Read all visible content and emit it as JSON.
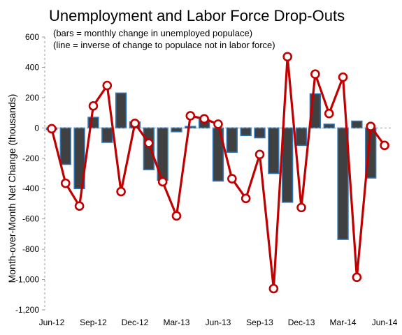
{
  "chart_data": {
    "type": "bar+line",
    "title": "Unemployment and Labor Force Drop-Outs",
    "subtitle_lines": [
      "(bars = monthly change in unemployed populace)",
      "(line = inverse of change to populace not in labor force)"
    ],
    "ylabel": "Month-over-Month Net Change (thousands)",
    "xlabel": "",
    "ylim": [
      -1200,
      600
    ],
    "yticks": [
      600,
      400,
      200,
      0,
      -200,
      -400,
      -600,
      -800,
      -1000,
      -1200
    ],
    "ytick_labels": [
      "600",
      "400",
      "200",
      "0",
      "-200",
      "-400",
      "-600",
      "-800",
      "-1,000",
      "-1,200"
    ],
    "x": [
      "Jun-12",
      "Jul-12",
      "Aug-12",
      "Sep-12",
      "Oct-12",
      "Nov-12",
      "Dec-12",
      "Jan-13",
      "Feb-13",
      "Mar-13",
      "Apr-13",
      "May-13",
      "Jun-13",
      "Jul-13",
      "Aug-13",
      "Sep-13",
      "Oct-13",
      "Nov-13",
      "Dec-13",
      "Jan-14",
      "Feb-14",
      "Mar-14",
      "Apr-14",
      "May-14",
      "Jun-14"
    ],
    "xtick_labels": [
      "Jun-12",
      "Sep-12",
      "Dec-12",
      "Mar-13",
      "Jun-13",
      "Sep-13",
      "Dec-13",
      "Mar-14",
      "Jun-14"
    ],
    "grid": false,
    "series": [
      {
        "type": "bar",
        "values": [
          -10,
          -240,
          -400,
          70,
          -95,
          230,
          40,
          -275,
          -345,
          -25,
          10,
          55,
          -350,
          -160,
          -50,
          -65,
          -300,
          -490,
          -115,
          225,
          25,
          -735,
          45,
          -330,
          0
        ],
        "color": "#404040",
        "edge_color": "#2a74b8"
      },
      {
        "type": "line",
        "values": [
          -5,
          -365,
          -515,
          145,
          280,
          -420,
          30,
          -100,
          -355,
          -580,
          80,
          60,
          25,
          -335,
          -465,
          -175,
          -1060,
          470,
          -525,
          355,
          95,
          335,
          -985,
          10,
          -115
        ],
        "color": "#c00000",
        "marker": "circle"
      }
    ]
  }
}
